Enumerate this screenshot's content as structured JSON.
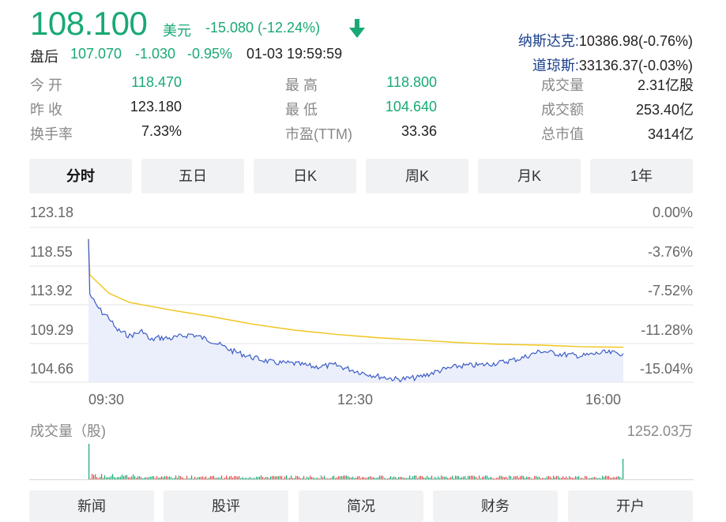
{
  "quote": {
    "price": "108.100",
    "currency": "美元",
    "change": "-15.080 (-12.24%)",
    "after_hours_label": "盘后",
    "after_hours_price": "107.070",
    "after_hours_change": "-1.030",
    "after_hours_pct": "-0.95%",
    "after_hours_time": "01-03 19:59:59"
  },
  "indices": {
    "nasdaq_name": "纳斯达克:",
    "nasdaq_value": "10386.98(-0.76%)",
    "dow_name": "道琼斯:",
    "dow_value": "33136.37(-0.03%)"
  },
  "stats": [
    {
      "label": "今  开",
      "value": "118.470",
      "color": "#19a974"
    },
    {
      "label": "昨  收",
      "value": "123.180",
      "color": "#222222"
    },
    {
      "label": "换手率",
      "value": "7.33%",
      "color": "#222222"
    },
    {
      "label": "最  高",
      "value": "118.800",
      "color": "#19a974"
    },
    {
      "label": "最  低",
      "value": "104.640",
      "color": "#19a974"
    },
    {
      "label": "市盈(TTM)",
      "value": "33.36",
      "color": "#222222"
    },
    {
      "label": "成交量",
      "value": "2.31亿股",
      "color": "#222222"
    },
    {
      "label": "成交额",
      "value": "253.40亿",
      "color": "#222222"
    },
    {
      "label": "总市值",
      "value": "3414亿",
      "color": "#222222"
    }
  ],
  "tabs": [
    "分时",
    "五日",
    "日K",
    "周K",
    "月K",
    "1年"
  ],
  "active_tab": "分时",
  "bottom_tabs": [
    "新闻",
    "股评",
    "简况",
    "财务",
    "开户"
  ],
  "colors": {
    "price_line": "#3b5cc4",
    "avg_line": "#f0c419",
    "area_fill": "#e8ecfb",
    "down": "#19a974",
    "up": "#e64545"
  },
  "chart_data": {
    "type": "line",
    "title": "",
    "xlabel": "",
    "ylabel": "",
    "x_ticks": [
      "09:30",
      "12:30",
      "16:00"
    ],
    "y_ticks_left": [
      "123.18",
      "118.55",
      "113.92",
      "109.29",
      "104.66"
    ],
    "y_ticks_right": [
      "0.00%",
      "-3.76%",
      "-7.52%",
      "-11.28%",
      "-15.04%"
    ],
    "ylim": [
      104.66,
      123.18
    ],
    "x_range": [
      "09:30",
      "16:00"
    ],
    "series": [
      {
        "name": "",
        "role": "price",
        "x": [
          "09:30",
          "09:31",
          "09:35",
          "09:40",
          "09:45",
          "09:50",
          "10:00",
          "10:10",
          "10:15",
          "10:20",
          "10:30",
          "10:45",
          "11:00",
          "11:15",
          "11:30",
          "11:45",
          "12:00",
          "12:15",
          "12:30",
          "12:45",
          "13:00",
          "13:15",
          "13:30",
          "13:45",
          "14:00",
          "14:15",
          "14:30",
          "14:45",
          "15:00",
          "15:15",
          "15:30",
          "15:45",
          "16:00"
        ],
        "values": [
          121.8,
          115.2,
          114.0,
          113.0,
          112.4,
          111.0,
          110.2,
          110.8,
          109.6,
          110.0,
          109.9,
          110.4,
          109.6,
          108.4,
          107.6,
          107.0,
          106.9,
          106.5,
          106.7,
          106.0,
          105.4,
          105.0,
          105.2,
          106.0,
          106.6,
          106.7,
          107.0,
          107.5,
          108.4,
          108.0,
          107.8,
          108.2,
          108.1
        ]
      },
      {
        "name": "",
        "role": "average",
        "x": [
          "09:30",
          "09:31",
          "09:45",
          "10:00",
          "10:30",
          "11:00",
          "11:30",
          "12:00",
          "12:30",
          "13:00",
          "13:30",
          "14:00",
          "14:30",
          "15:00",
          "15:30",
          "16:00"
        ],
        "values": [
          121.8,
          117.5,
          115.3,
          114.2,
          113.3,
          112.5,
          111.6,
          110.9,
          110.4,
          110.0,
          109.7,
          109.4,
          109.2,
          109.1,
          108.9,
          108.85
        ]
      }
    ]
  },
  "volume": {
    "title": "成交量（股)",
    "max_label": "1252.03万"
  }
}
